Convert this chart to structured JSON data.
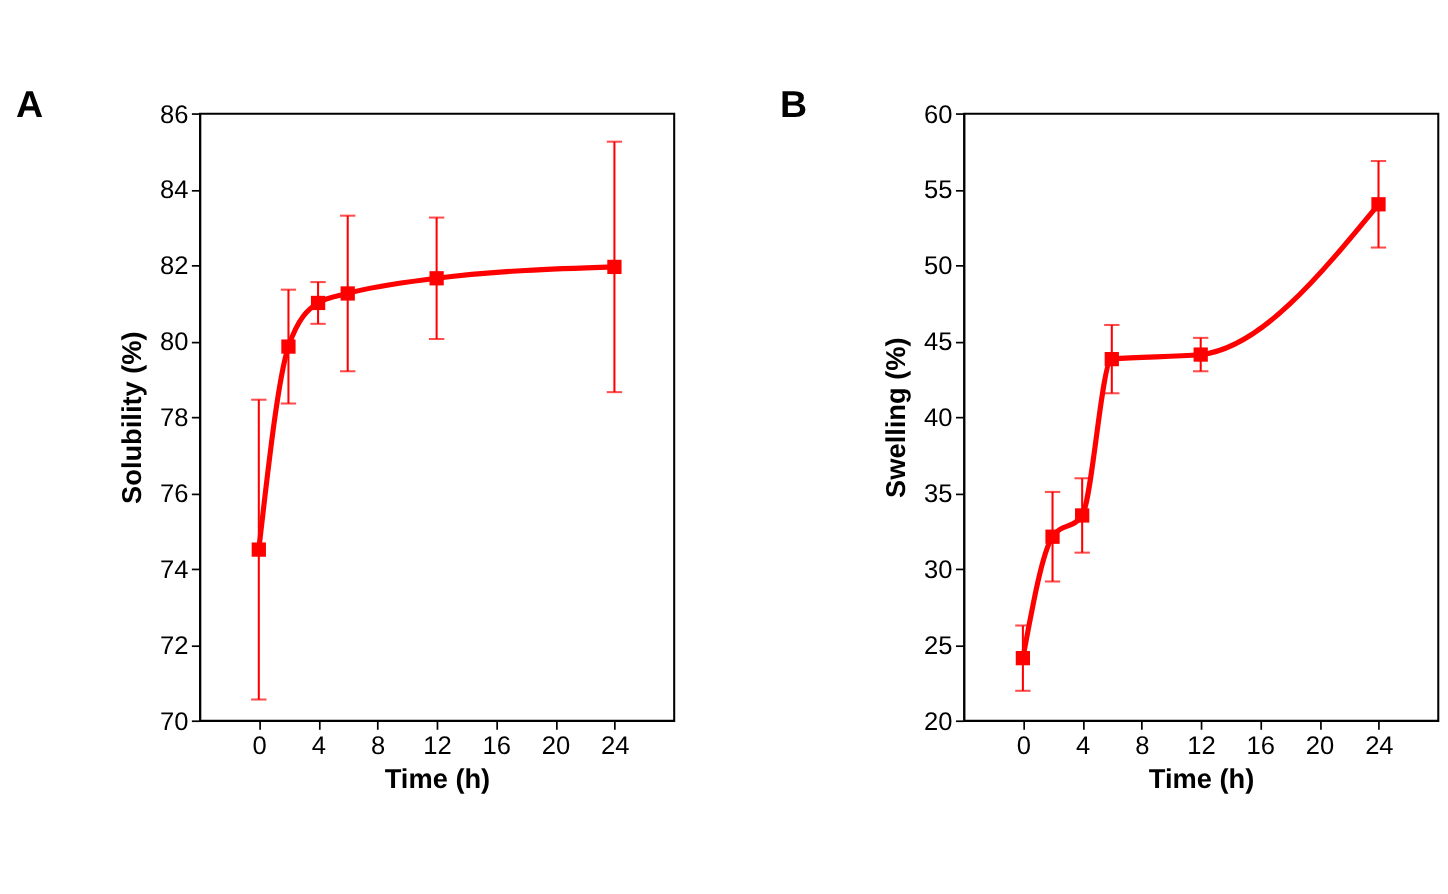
{
  "chart_data": [
    {
      "type": "line",
      "title": "A",
      "xlabel": "Time (h)",
      "ylabel": "Solubility (%)",
      "x": [
        0,
        2,
        4,
        6,
        12,
        24
      ],
      "xlim": [
        -4,
        28
      ],
      "xticks": [
        0,
        4,
        8,
        12,
        16,
        20,
        24
      ],
      "ylim": [
        70,
        86
      ],
      "yticks": [
        70,
        72,
        74,
        76,
        78,
        80,
        82,
        84,
        86
      ],
      "grid": false,
      "marker": "square",
      "line_style": "solid",
      "series": [
        {
          "color": "#ff0000",
          "values": [
            74.5,
            79.85,
            81.0,
            81.25,
            81.65,
            81.95
          ],
          "errors": [
            3.95,
            1.5,
            0.55,
            2.05,
            1.6,
            3.3
          ]
        }
      ]
    },
    {
      "type": "line",
      "title": "B",
      "xlabel": "Time (h)",
      "ylabel": "Swelling (%)",
      "x": [
        0,
        2,
        4,
        6,
        12,
        24
      ],
      "xlim": [
        -4,
        28
      ],
      "xticks": [
        0,
        4,
        8,
        12,
        16,
        20,
        24
      ],
      "ylim": [
        20,
        60
      ],
      "yticks": [
        20,
        25,
        30,
        35,
        40,
        45,
        50,
        55,
        60
      ],
      "grid": false,
      "marker": "square",
      "line_style": "solid",
      "series": [
        {
          "color": "#ff0000",
          "values": [
            24.1,
            32.1,
            33.5,
            43.8,
            44.1,
            54.0
          ],
          "errors": [
            2.15,
            2.95,
            2.45,
            2.25,
            1.1,
            2.85
          ]
        }
      ]
    }
  ]
}
